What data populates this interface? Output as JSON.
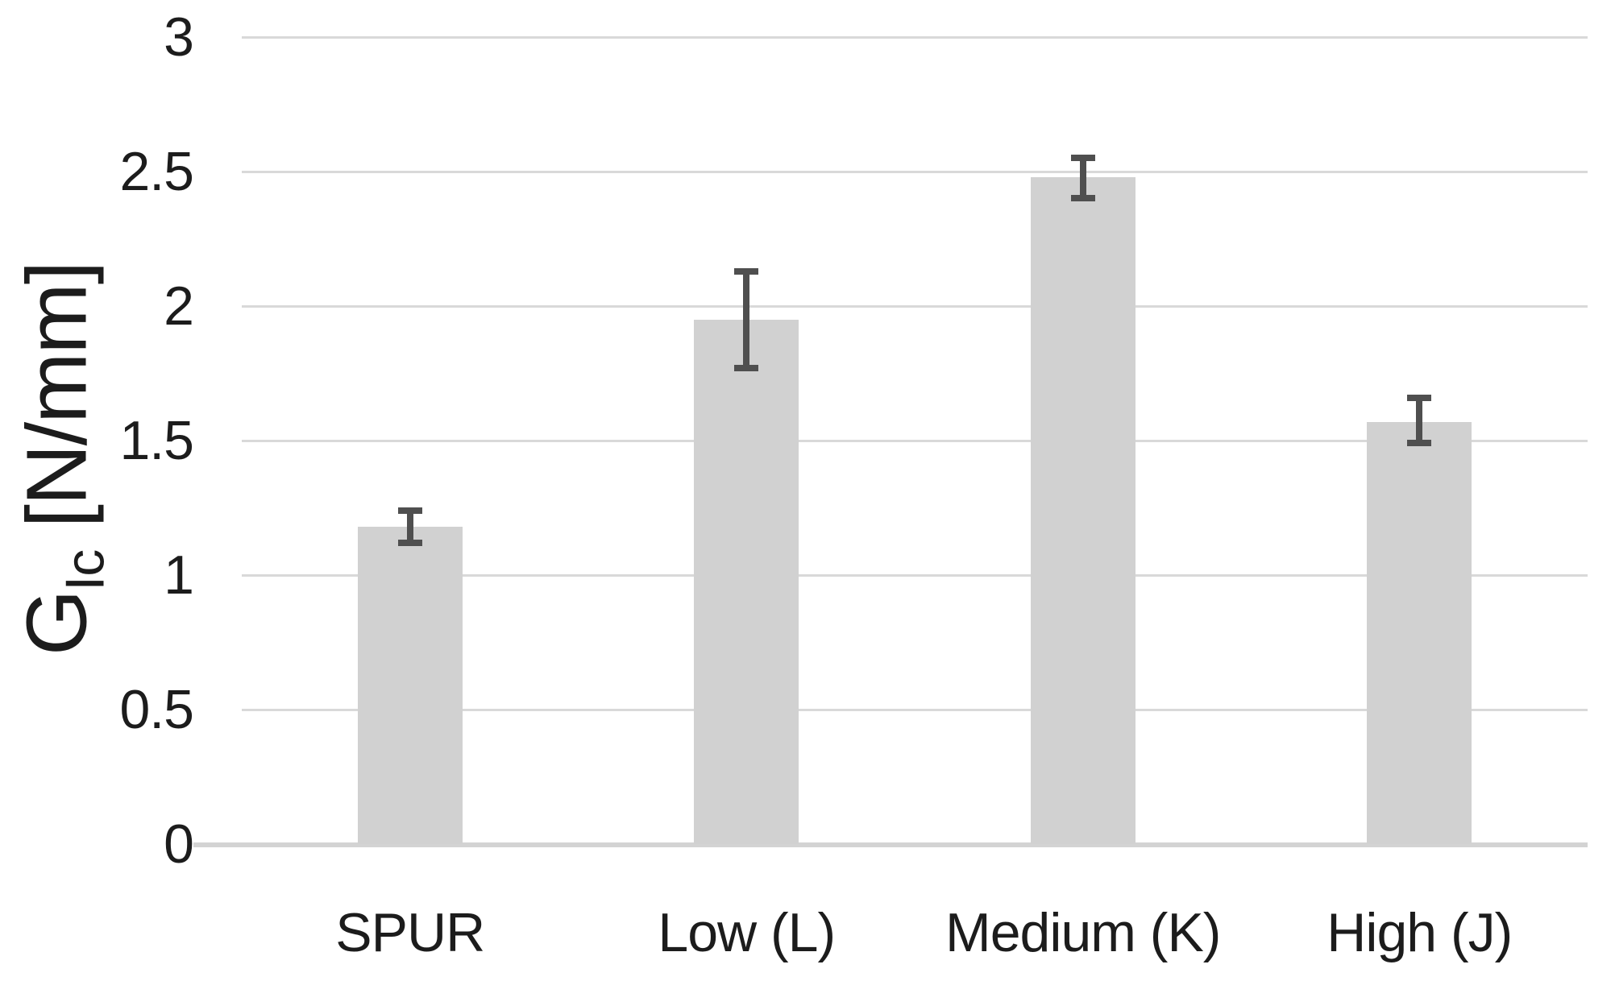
{
  "chart_data": {
    "type": "bar",
    "title": "",
    "xlabel": "",
    "ylabel": "GIc [N/mm]",
    "ylabel_parts": {
      "base": "G",
      "sub": "Ic",
      "units": "[N/mm]"
    },
    "categories": [
      "SPUR",
      "Low (L)",
      "Medium (K)",
      "High (J)"
    ],
    "values": [
      1.18,
      1.95,
      2.48,
      1.57
    ],
    "error_plus": [
      0.06,
      0.18,
      0.07,
      0.09
    ],
    "error_minus": [
      0.06,
      0.18,
      0.08,
      0.08
    ],
    "ylim": [
      0,
      3
    ],
    "ytick_step": 0.5,
    "ytick_labels": [
      "0",
      "0.5",
      "1",
      "1.5",
      "2",
      "2.5",
      "3"
    ],
    "grid": true,
    "legend": false,
    "colors": {
      "background": "#ffffff",
      "bar_fill": "#d1d1d1",
      "error_bar": "#4f4f4f",
      "gridline": "#d9d9d9",
      "axis_line": "#d3d3d3",
      "text": "#1c1c1c"
    }
  }
}
